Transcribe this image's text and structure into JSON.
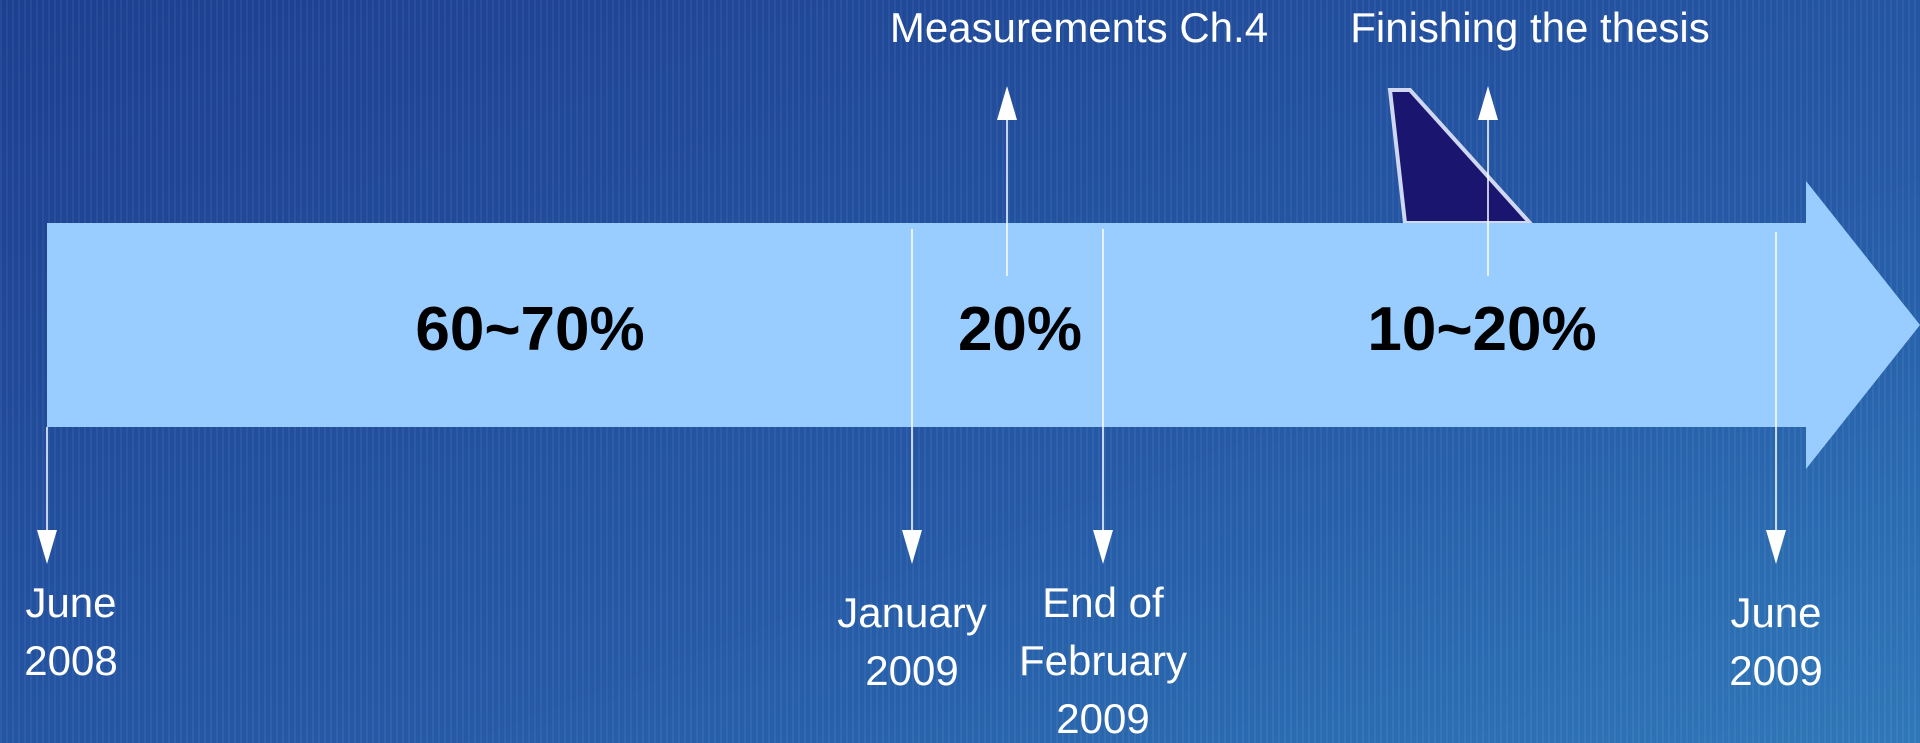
{
  "phases": [
    {
      "label": "60~70%"
    },
    {
      "label": "20%"
    },
    {
      "label": "10~20%"
    }
  ],
  "milestones": [
    {
      "lines": [
        "June",
        "2008"
      ]
    },
    {
      "lines": [
        "January",
        "2009"
      ]
    },
    {
      "lines": [
        "End of",
        "February",
        "2009"
      ]
    },
    {
      "lines": [
        "June",
        "2009"
      ]
    }
  ],
  "tasks": [
    {
      "label": "Measurements Ch.4"
    },
    {
      "label": "Finishing the thesis"
    }
  ]
}
